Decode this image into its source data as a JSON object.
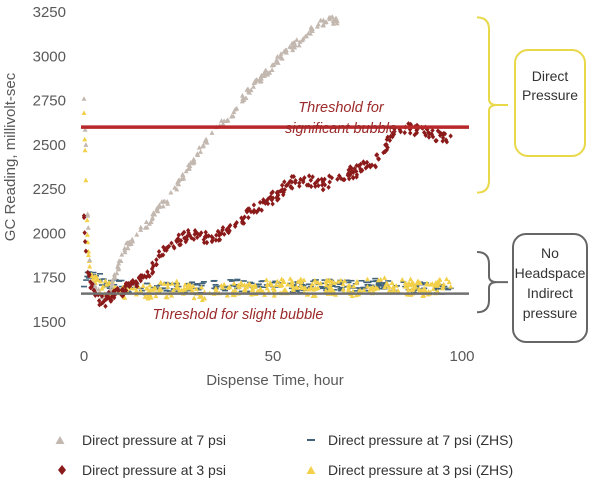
{
  "chart_data": {
    "type": "scatter",
    "xlabel": "Dispense Time, hour",
    "ylabel": "GC Reading, millivolt-sec",
    "xlim": [
      -3,
      102
    ],
    "ylim": [
      1480,
      3260
    ],
    "xticks": [
      0,
      50,
      100
    ],
    "yticks": [
      1500,
      1750,
      2000,
      2250,
      2500,
      2750,
      3000,
      3250
    ],
    "grid": false,
    "legend_position": "bottom",
    "thresholds": [
      {
        "label_line1": "Threshold for",
        "label_line2": "significant bubble",
        "y": 2600,
        "color": "#b8282b"
      },
      {
        "label_line1": "Threshold for slight bubble",
        "label_line2": "",
        "y": 1660,
        "color": "#707070"
      }
    ],
    "brackets": [
      {
        "label_lines": [
          "Direct",
          "Pressure"
        ],
        "y_range": [
          2230,
          3220
        ],
        "color": "#e8d84a"
      },
      {
        "label_lines": [
          "No",
          "Headspace",
          "Indirect",
          "pressure"
        ],
        "y_range": [
          1555,
          1895
        ],
        "color": "#666666"
      }
    ],
    "series": [
      {
        "name": "Direct pressure at 7 psi",
        "marker": "triangle",
        "color": "#c3b8b0",
        "points": [
          [
            0,
            2760
          ],
          [
            0.5,
            2500
          ],
          [
            1,
            2100
          ],
          [
            1.5,
            1850
          ],
          [
            2,
            1720
          ],
          [
            3,
            1690
          ],
          [
            4,
            1660
          ],
          [
            5,
            1640
          ],
          [
            6,
            1640
          ],
          [
            7,
            1680
          ],
          [
            8,
            1750
          ],
          [
            9,
            1810
          ],
          [
            10,
            1880
          ],
          [
            12,
            1950
          ],
          [
            15,
            2020
          ],
          [
            18,
            2080
          ],
          [
            20,
            2150
          ],
          [
            22,
            2180
          ],
          [
            25,
            2280
          ],
          [
            28,
            2380
          ],
          [
            30,
            2450
          ],
          [
            32,
            2520
          ],
          [
            35,
            2600
          ],
          [
            38,
            2640
          ],
          [
            40,
            2700
          ],
          [
            42,
            2760
          ],
          [
            45,
            2850
          ],
          [
            48,
            2900
          ],
          [
            50,
            2950
          ],
          [
            52,
            3000
          ],
          [
            55,
            3050
          ],
          [
            58,
            3100
          ],
          [
            60,
            3150
          ],
          [
            62,
            3180
          ],
          [
            65,
            3210
          ],
          [
            67,
            3200
          ]
        ]
      },
      {
        "name": "Direct pressure at 3 psi",
        "marker": "diamond",
        "color": "#8b1a1a",
        "points": [
          [
            0,
            2100
          ],
          [
            0.5,
            1900
          ],
          [
            1,
            1780
          ],
          [
            2,
            1700
          ],
          [
            3,
            1650
          ],
          [
            4,
            1620
          ],
          [
            5,
            1610
          ],
          [
            6,
            1630
          ],
          [
            8,
            1650
          ],
          [
            10,
            1680
          ],
          [
            12,
            1700
          ],
          [
            14,
            1720
          ],
          [
            16,
            1760
          ],
          [
            18,
            1800
          ],
          [
            20,
            1870
          ],
          [
            22,
            1920
          ],
          [
            25,
            1960
          ],
          [
            28,
            1990
          ],
          [
            30,
            2000
          ],
          [
            32,
            1980
          ],
          [
            35,
            1990
          ],
          [
            38,
            2010
          ],
          [
            40,
            2040
          ],
          [
            42,
            2080
          ],
          [
            45,
            2130
          ],
          [
            48,
            2170
          ],
          [
            50,
            2200
          ],
          [
            52,
            2240
          ],
          [
            55,
            2290
          ],
          [
            58,
            2290
          ],
          [
            60,
            2300
          ],
          [
            62,
            2270
          ],
          [
            65,
            2290
          ],
          [
            68,
            2310
          ],
          [
            70,
            2340
          ],
          [
            72,
            2350
          ],
          [
            75,
            2380
          ],
          [
            78,
            2420
          ],
          [
            80,
            2500
          ],
          [
            82,
            2560
          ],
          [
            85,
            2600
          ],
          [
            88,
            2580
          ],
          [
            90,
            2570
          ],
          [
            92,
            2560
          ],
          [
            95,
            2540
          ],
          [
            97,
            2550
          ]
        ]
      },
      {
        "name": "Direct pressure at 7 psi (ZHS)",
        "marker": "dash",
        "color": "#40627a",
        "points": [
          [
            0,
            1700
          ],
          [
            1,
            1780
          ],
          [
            2,
            1760
          ],
          [
            4,
            1740
          ],
          [
            6,
            1720
          ],
          [
            8,
            1710
          ],
          [
            10,
            1700
          ],
          [
            15,
            1690
          ],
          [
            20,
            1690
          ],
          [
            25,
            1700
          ],
          [
            30,
            1690
          ],
          [
            35,
            1700
          ],
          [
            40,
            1710
          ],
          [
            45,
            1700
          ],
          [
            50,
            1700
          ],
          [
            55,
            1690
          ],
          [
            60,
            1700
          ],
          [
            65,
            1710
          ],
          [
            70,
            1700
          ],
          [
            75,
            1710
          ],
          [
            80,
            1710
          ],
          [
            85,
            1700
          ],
          [
            90,
            1690
          ],
          [
            95,
            1690
          ],
          [
            97,
            1690
          ]
        ]
      },
      {
        "name": "Direct pressure at 3 psi (ZHS)",
        "marker": "triangle",
        "color": "#f2d04a",
        "points": [
          [
            0,
            2680
          ],
          [
            0.5,
            2300
          ],
          [
            1,
            1950
          ],
          [
            2,
            1760
          ],
          [
            3,
            1720
          ],
          [
            5,
            1700
          ],
          [
            8,
            1690
          ],
          [
            10,
            1680
          ],
          [
            15,
            1670
          ],
          [
            20,
            1680
          ],
          [
            25,
            1690
          ],
          [
            30,
            1660
          ],
          [
            35,
            1680
          ],
          [
            40,
            1680
          ],
          [
            45,
            1700
          ],
          [
            50,
            1690
          ],
          [
            55,
            1710
          ],
          [
            60,
            1690
          ],
          [
            65,
            1700
          ],
          [
            70,
            1690
          ],
          [
            75,
            1700
          ],
          [
            80,
            1710
          ],
          [
            85,
            1700
          ],
          [
            90,
            1690
          ],
          [
            95,
            1700
          ],
          [
            97,
            1700
          ]
        ]
      }
    ]
  }
}
